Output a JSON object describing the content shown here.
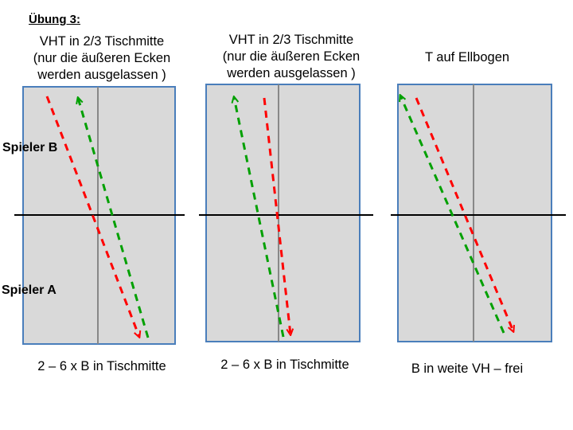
{
  "title": "Übung 3:",
  "players": {
    "b": "Spieler B",
    "a": "Spieler A"
  },
  "colors": {
    "table": "#d9d9d9",
    "border": "#4a7ebb",
    "red": "#ff0000",
    "green": "#00a000"
  },
  "panels": [
    {
      "caption": [
        "VHT in 2/3 Tischmitte",
        "(nur die äußeren Ecken",
        "werden ausgelassen )"
      ],
      "footer": "2 – 6 x B in Tischmitte"
    },
    {
      "caption": [
        "VHT in 2/3 Tischmitte",
        "(nur die äußeren Ecken",
        "werden ausgelassen )"
      ],
      "footer": "2 – 6 x B in Tischmitte"
    },
    {
      "caption": [
        "T auf Ellbogen"
      ],
      "footer": "B in weite VH – frei"
    }
  ]
}
